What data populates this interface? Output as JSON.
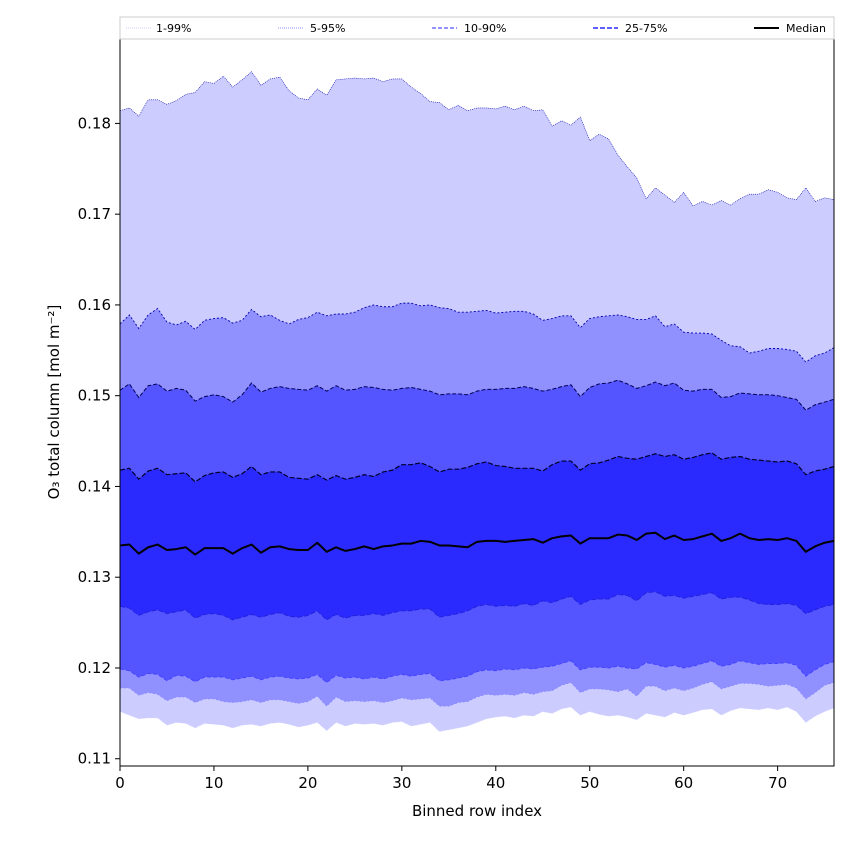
{
  "chart_data": {
    "type": "area",
    "title": "",
    "xlabel": "Binned row index",
    "ylabel": "O₃ total column [mol m⁻²]",
    "xlim": [
      0,
      76
    ],
    "ylim": [
      0.1092,
      0.1893
    ],
    "xticks": [
      0,
      10,
      20,
      30,
      40,
      50,
      60,
      70
    ],
    "yticks": [
      0.11,
      0.12,
      0.13,
      0.14,
      0.15,
      0.16,
      0.17,
      0.18
    ],
    "legend": {
      "position": "top, above plot, horizontal",
      "entries": [
        "1-99%",
        "5-95%",
        "10-90%",
        "25-75%",
        "Median"
      ]
    },
    "colors": {
      "band_1_99": "#ccccff",
      "band_5_95": "#9090ff",
      "band_10_90": "#5555ff",
      "band_25_75": "#2a2aff",
      "median": "#000000",
      "edge_5_95": "#0000aa",
      "edge_10_90": "#000055",
      "edge_25_75": "#00002a"
    },
    "x": [
      0,
      1,
      2,
      3,
      4,
      5,
      6,
      7,
      8,
      9,
      10,
      11,
      12,
      13,
      14,
      15,
      16,
      17,
      18,
      19,
      20,
      21,
      22,
      23,
      24,
      25,
      26,
      27,
      28,
      29,
      30,
      31,
      32,
      33,
      34,
      35,
      36,
      37,
      38,
      39,
      40,
      41,
      42,
      43,
      44,
      45,
      46,
      47,
      48,
      49,
      50,
      51,
      52,
      53,
      54,
      55,
      56,
      57,
      58,
      59,
      60,
      61,
      62,
      63,
      64,
      65,
      66,
      67,
      68,
      69,
      70,
      71,
      72,
      73,
      74,
      75,
      76
    ],
    "series": [
      {
        "name": "p1",
        "values": [
          0.1152,
          0.1148,
          0.1144,
          0.1145,
          0.1145,
          0.1137,
          0.114,
          0.1139,
          0.1134,
          0.1139,
          0.1138,
          0.1137,
          0.1134,
          0.1137,
          0.1138,
          0.1136,
          0.1139,
          0.114,
          0.1138,
          0.1135,
          0.1137,
          0.114,
          0.1131,
          0.114,
          0.1136,
          0.1139,
          0.1138,
          0.1139,
          0.1137,
          0.114,
          0.1141,
          0.1136,
          0.1138,
          0.114,
          0.113,
          0.1132,
          0.1134,
          0.1136,
          0.114,
          0.1144,
          0.1146,
          0.1147,
          0.1145,
          0.1148,
          0.1147,
          0.1152,
          0.115,
          0.1155,
          0.1157,
          0.1148,
          0.1152,
          0.1149,
          0.1147,
          0.1148,
          0.1146,
          0.1143,
          0.115,
          0.1148,
          0.1146,
          0.1151,
          0.1148,
          0.1151,
          0.1154,
          0.1155,
          0.1148,
          0.1153,
          0.1156,
          0.1155,
          0.1154,
          0.1156,
          0.1154,
          0.1157,
          0.1152,
          0.114,
          0.1147,
          0.1152,
          0.1156
        ]
      },
      {
        "name": "p5",
        "values": [
          0.1178,
          0.1178,
          0.117,
          0.1173,
          0.1171,
          0.1164,
          0.1168,
          0.1168,
          0.1162,
          0.1166,
          0.1166,
          0.1163,
          0.1162,
          0.1163,
          0.1165,
          0.1162,
          0.1165,
          0.1165,
          0.1163,
          0.1161,
          0.1163,
          0.1169,
          0.1158,
          0.1168,
          0.1163,
          0.1164,
          0.1163,
          0.1164,
          0.1162,
          0.1164,
          0.1167,
          0.1165,
          0.1166,
          0.1167,
          0.1158,
          0.1158,
          0.1162,
          0.1163,
          0.1168,
          0.1171,
          0.117,
          0.1171,
          0.117,
          0.1173,
          0.1171,
          0.1174,
          0.1175,
          0.1181,
          0.1184,
          0.1173,
          0.1177,
          0.1177,
          0.1176,
          0.1174,
          0.1177,
          0.1169,
          0.118,
          0.118,
          0.1175,
          0.1178,
          0.1175,
          0.1178,
          0.1182,
          0.1185,
          0.1177,
          0.118,
          0.1183,
          0.1183,
          0.1182,
          0.118,
          0.1181,
          0.1182,
          0.1178,
          0.1166,
          0.1173,
          0.1181,
          0.1184
        ]
      },
      {
        "name": "p10",
        "values": [
          0.1199,
          0.1197,
          0.119,
          0.1194,
          0.1193,
          0.1186,
          0.1192,
          0.1191,
          0.1185,
          0.119,
          0.119,
          0.119,
          0.1187,
          0.1189,
          0.1191,
          0.1187,
          0.119,
          0.1191,
          0.1189,
          0.1188,
          0.1189,
          0.1193,
          0.1184,
          0.1192,
          0.1189,
          0.119,
          0.1188,
          0.119,
          0.1188,
          0.1191,
          0.1193,
          0.1191,
          0.1193,
          0.1194,
          0.1186,
          0.1187,
          0.1189,
          0.1191,
          0.1196,
          0.1198,
          0.1197,
          0.1199,
          0.1198,
          0.12,
          0.1199,
          0.1201,
          0.1202,
          0.1205,
          0.1208,
          0.1198,
          0.1201,
          0.1201,
          0.12,
          0.1202,
          0.12,
          0.1199,
          0.1206,
          0.1204,
          0.1201,
          0.1203,
          0.12,
          0.1202,
          0.1205,
          0.1208,
          0.1202,
          0.1204,
          0.1208,
          0.1206,
          0.1204,
          0.1205,
          0.1205,
          0.1206,
          0.1203,
          0.1191,
          0.1198,
          0.1204,
          0.1207
        ]
      },
      {
        "name": "p25",
        "values": [
          0.1268,
          0.1266,
          0.1258,
          0.1262,
          0.1264,
          0.126,
          0.1262,
          0.1264,
          0.1255,
          0.1259,
          0.126,
          0.1258,
          0.1253,
          0.1256,
          0.1259,
          0.1256,
          0.1259,
          0.1261,
          0.1257,
          0.1256,
          0.1258,
          0.1263,
          0.1253,
          0.1259,
          0.1255,
          0.1258,
          0.1258,
          0.126,
          0.1258,
          0.1261,
          0.1263,
          0.1263,
          0.1265,
          0.1265,
          0.1256,
          0.1258,
          0.126,
          0.1263,
          0.1268,
          0.127,
          0.1268,
          0.1269,
          0.1268,
          0.1271,
          0.1269,
          0.1274,
          0.1272,
          0.1276,
          0.1279,
          0.127,
          0.1275,
          0.1276,
          0.1276,
          0.1281,
          0.128,
          0.1274,
          0.1283,
          0.1284,
          0.1279,
          0.128,
          0.1277,
          0.1279,
          0.1281,
          0.1283,
          0.1276,
          0.1278,
          0.1278,
          0.1275,
          0.1271,
          0.127,
          0.127,
          0.1271,
          0.1269,
          0.126,
          0.1264,
          0.1268,
          0.127
        ]
      },
      {
        "name": "median",
        "values": [
          0.1335,
          0.1336,
          0.1326,
          0.1333,
          0.1336,
          0.133,
          0.1331,
          0.1333,
          0.1325,
          0.1332,
          0.1332,
          0.1332,
          0.1326,
          0.1332,
          0.1336,
          0.1327,
          0.1333,
          0.1334,
          0.1331,
          0.133,
          0.133,
          0.1338,
          0.1328,
          0.1333,
          0.1329,
          0.1331,
          0.1334,
          0.1331,
          0.1334,
          0.1335,
          0.1337,
          0.1337,
          0.134,
          0.1339,
          0.1335,
          0.1335,
          0.1334,
          0.1333,
          0.1339,
          0.134,
          0.134,
          0.1339,
          0.134,
          0.1341,
          0.1342,
          0.1338,
          0.1343,
          0.1345,
          0.1346,
          0.1337,
          0.1343,
          0.1343,
          0.1343,
          0.1347,
          0.1346,
          0.1341,
          0.1348,
          0.1349,
          0.1342,
          0.1346,
          0.1341,
          0.1342,
          0.1345,
          0.1348,
          0.134,
          0.1343,
          0.1348,
          0.1343,
          0.1341,
          0.1342,
          0.1341,
          0.1343,
          0.134,
          0.1328,
          0.1334,
          0.1338,
          0.134
        ]
      },
      {
        "name": "p75",
        "values": [
          0.1418,
          0.142,
          0.1408,
          0.1417,
          0.142,
          0.1413,
          0.1414,
          0.1415,
          0.1405,
          0.1412,
          0.1415,
          0.1416,
          0.141,
          0.1414,
          0.1422,
          0.1413,
          0.1416,
          0.1416,
          0.141,
          0.1409,
          0.1408,
          0.1413,
          0.1407,
          0.1412,
          0.1408,
          0.141,
          0.1413,
          0.1411,
          0.1416,
          0.1418,
          0.1424,
          0.1424,
          0.1426,
          0.1422,
          0.1416,
          0.1419,
          0.1419,
          0.1421,
          0.1425,
          0.1427,
          0.1423,
          0.1422,
          0.142,
          0.142,
          0.142,
          0.1417,
          0.1424,
          0.1428,
          0.1428,
          0.1418,
          0.1425,
          0.1426,
          0.1429,
          0.1433,
          0.1431,
          0.143,
          0.1433,
          0.1436,
          0.1433,
          0.1435,
          0.143,
          0.1432,
          0.1435,
          0.1437,
          0.143,
          0.1432,
          0.1433,
          0.143,
          0.1429,
          0.1428,
          0.1427,
          0.1428,
          0.1425,
          0.1413,
          0.1417,
          0.1419,
          0.1422
        ]
      },
      {
        "name": "p90",
        "values": [
          0.1506,
          0.1513,
          0.1498,
          0.1511,
          0.1513,
          0.1505,
          0.1508,
          0.1506,
          0.1494,
          0.1499,
          0.1501,
          0.1499,
          0.1493,
          0.1501,
          0.1514,
          0.1504,
          0.1508,
          0.151,
          0.1508,
          0.1507,
          0.1506,
          0.1511,
          0.1505,
          0.1511,
          0.1506,
          0.1507,
          0.151,
          0.1509,
          0.1507,
          0.1506,
          0.1508,
          0.1509,
          0.1507,
          0.1505,
          0.1501,
          0.1502,
          0.1502,
          0.1501,
          0.1505,
          0.1507,
          0.1507,
          0.1508,
          0.1508,
          0.151,
          0.1508,
          0.1505,
          0.1507,
          0.151,
          0.1512,
          0.1499,
          0.1509,
          0.1513,
          0.1514,
          0.1517,
          0.1513,
          0.1508,
          0.1511,
          0.1515,
          0.1511,
          0.1514,
          0.1506,
          0.1505,
          0.1507,
          0.1507,
          0.1498,
          0.1499,
          0.1503,
          0.1502,
          0.1501,
          0.1501,
          0.15,
          0.1498,
          0.1496,
          0.1484,
          0.149,
          0.1493,
          0.1496
        ]
      },
      {
        "name": "p95",
        "values": [
          0.1579,
          0.1589,
          0.1574,
          0.1589,
          0.1596,
          0.1581,
          0.1578,
          0.1582,
          0.1573,
          0.1583,
          0.1585,
          0.1586,
          0.158,
          0.1583,
          0.1595,
          0.1587,
          0.1589,
          0.1583,
          0.1579,
          0.1584,
          0.1586,
          0.1592,
          0.1588,
          0.159,
          0.159,
          0.1592,
          0.1597,
          0.16,
          0.1598,
          0.1598,
          0.1602,
          0.1602,
          0.1599,
          0.16,
          0.1597,
          0.1596,
          0.1592,
          0.1592,
          0.1593,
          0.1594,
          0.1591,
          0.1592,
          0.1593,
          0.1593,
          0.159,
          0.1583,
          0.1585,
          0.1588,
          0.1588,
          0.1575,
          0.1585,
          0.1587,
          0.1588,
          0.1589,
          0.1587,
          0.1584,
          0.1584,
          0.1588,
          0.1576,
          0.1579,
          0.157,
          0.1569,
          0.1569,
          0.1568,
          0.1561,
          0.1555,
          0.1554,
          0.1547,
          0.1549,
          0.1552,
          0.1552,
          0.1551,
          0.1549,
          0.1537,
          0.1544,
          0.1547,
          0.1553
        ]
      },
      {
        "name": "p99",
        "values": [
          0.1814,
          0.1817,
          0.1808,
          0.1826,
          0.1826,
          0.1821,
          0.1825,
          0.1832,
          0.1834,
          0.1846,
          0.1844,
          0.1852,
          0.184,
          0.1848,
          0.1857,
          0.1842,
          0.1849,
          0.1851,
          0.1836,
          0.1828,
          0.1826,
          0.1838,
          0.1831,
          0.1848,
          0.1849,
          0.185,
          0.1849,
          0.185,
          0.1846,
          0.1849,
          0.1849,
          0.184,
          0.1833,
          0.1824,
          0.1823,
          0.1815,
          0.182,
          0.1814,
          0.1817,
          0.1817,
          0.1816,
          0.1819,
          0.1815,
          0.1819,
          0.1814,
          0.1815,
          0.1797,
          0.1803,
          0.1798,
          0.1807,
          0.1781,
          0.1788,
          0.1783,
          0.1765,
          0.1752,
          0.174,
          0.1717,
          0.1729,
          0.1721,
          0.1713,
          0.1724,
          0.1709,
          0.1714,
          0.171,
          0.1715,
          0.171,
          0.1717,
          0.1722,
          0.1722,
          0.1727,
          0.1724,
          0.1718,
          0.1716,
          0.1729,
          0.1714,
          0.1718,
          0.1716
        ]
      }
    ]
  }
}
